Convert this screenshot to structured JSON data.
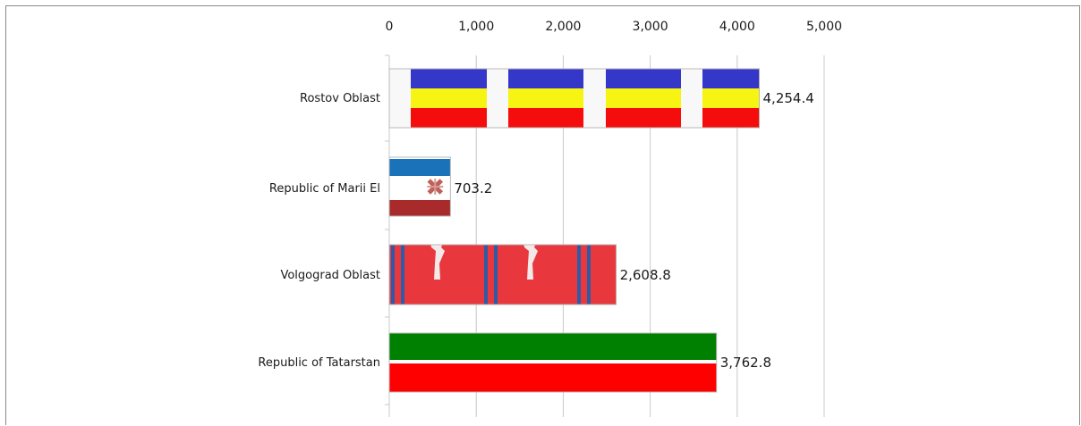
{
  "chart_data": {
    "type": "bar",
    "orientation": "horizontal",
    "categories": [
      "Rostov Oblast",
      "Republic of Marii El",
      "Volgograd Oblast",
      "Republic of Tatarstan"
    ],
    "values": [
      4254.4,
      703.2,
      2608.8,
      3762.8
    ],
    "value_labels": [
      "4,254.4",
      "703.2",
      "2,608.8",
      "3,762.8"
    ],
    "xlim": [
      0,
      5000
    ],
    "xticks": [
      0,
      1000,
      2000,
      3000,
      4000,
      5000
    ],
    "xtick_labels": [
      "0",
      "1,000",
      "2,000",
      "3,000",
      "4,000",
      "5,000"
    ],
    "x_axis_position": "top",
    "grid": true,
    "bar_fill": "flag images of each region",
    "colors": {
      "rostov_blue": "#3537c8",
      "rostov_yellow": "#f7f313",
      "rostov_red": "#f50c0c",
      "marii_blue": "#1a72b8",
      "marii_red": "#a82a2a",
      "marii_cross": "#c0605a",
      "volgograd_red": "#e8383e",
      "volgograd_blue": "#2f5aa5",
      "tatarstan_green": "#008000",
      "tatarstan_red": "#ff0000"
    }
  }
}
